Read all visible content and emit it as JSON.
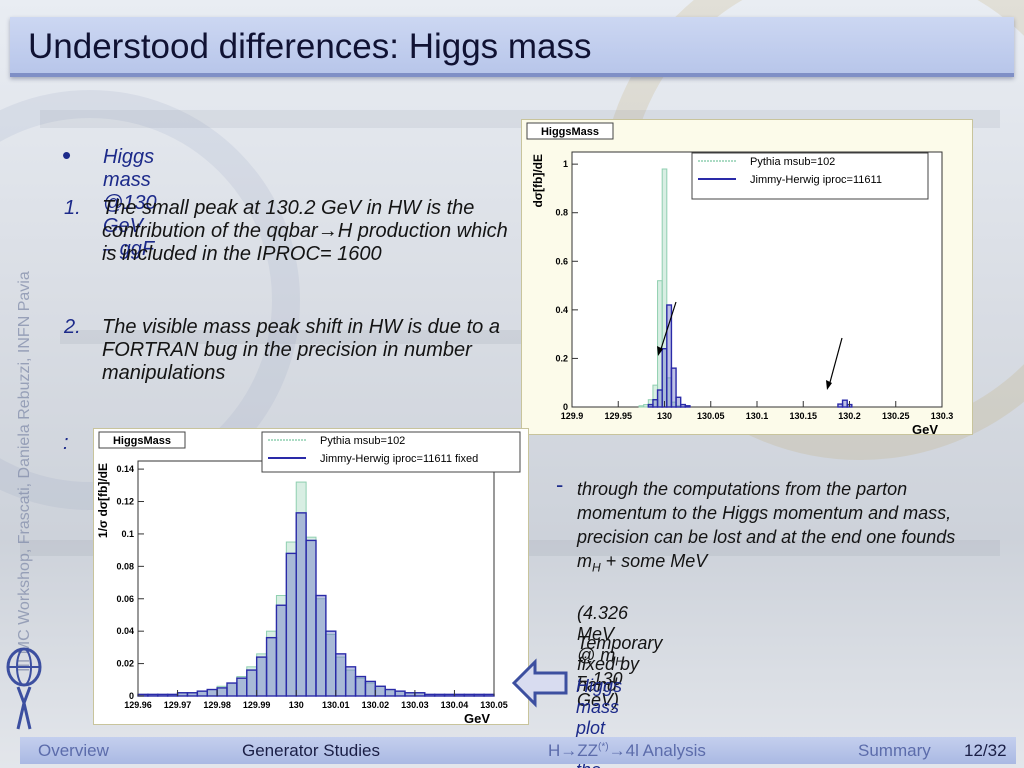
{
  "slide": {
    "title": "Understood differences: Higgs mass",
    "side_credit": "III MC Workshop, Frascati, Daniela Rebuzzi, INFN Pavia"
  },
  "body": {
    "bullet": "Higgs mass @130 GeV – ggF",
    "items": [
      {
        "num": "1.",
        "text": "The small peak at 130.2 GeV in HW is the contribution of the qqbar→H production which is included in the IPROC= 1600"
      },
      {
        "num": "2.",
        "text": "The visible mass peak shift in HW is due to a FORTRAN bug in the precision in number manipulations"
      }
    ],
    "colon": ":",
    "note": {
      "dash": "-",
      "text_before": "through the computations from the parton momentum to the Higgs momentum and mass, precision can be lost and at the end one founds m",
      "text_sub": "H",
      "text_after": " + some MeV",
      "line2_before": "(4.326 MeV @ m",
      "line2_sub": "H",
      "line2_after": " = 130 GeV)",
      "line3": "Temporary fixed by hand"
    },
    "fix_label": "Higgs mass plot after the fixes"
  },
  "chart_data": [
    {
      "type": "bar",
      "title": "HiggsMass",
      "xlabel": "GeV",
      "ylabel": "dσ[fb]/dE",
      "xlim": [
        129.9,
        130.3
      ],
      "ylim": [
        0,
        1.05
      ],
      "x_ticks": [
        "129.9",
        "129.95",
        "130",
        "130.05",
        "130.1",
        "130.15",
        "130.2",
        "130.25",
        "130.3"
      ],
      "y_ticks": [
        "0",
        "0.2",
        "0.4",
        "0.6",
        "0.8",
        "1"
      ],
      "legend_position": "top-right",
      "series": [
        {
          "name": "Pythia msub=102",
          "color": "#8fcfb0",
          "points": [
            {
              "x": 129.975,
              "y": 0.005
            },
            {
              "x": 129.98,
              "y": 0.01
            },
            {
              "x": 129.985,
              "y": 0.03
            },
            {
              "x": 129.99,
              "y": 0.09
            },
            {
              "x": 129.995,
              "y": 0.52
            },
            {
              "x": 130.0,
              "y": 0.98
            },
            {
              "x": 130.005,
              "y": 0.12
            },
            {
              "x": 130.01,
              "y": 0.02
            },
            {
              "x": 130.015,
              "y": 0.005
            }
          ]
        },
        {
          "name": "Jimmy-Herwig iproc=11611",
          "color": "#2a2aa8",
          "points": [
            {
              "x": 129.985,
              "y": 0.01
            },
            {
              "x": 129.99,
              "y": 0.03
            },
            {
              "x": 129.995,
              "y": 0.07
            },
            {
              "x": 130.0,
              "y": 0.24
            },
            {
              "x": 130.005,
              "y": 0.42
            },
            {
              "x": 130.01,
              "y": 0.16
            },
            {
              "x": 130.015,
              "y": 0.04
            },
            {
              "x": 130.02,
              "y": 0.01
            },
            {
              "x": 130.025,
              "y": 0.005
            },
            {
              "x": 130.19,
              "y": 0.012
            },
            {
              "x": 130.195,
              "y": 0.028
            },
            {
              "x": 130.2,
              "y": 0.01
            }
          ]
        }
      ]
    },
    {
      "type": "bar",
      "title": "HiggsMass",
      "xlabel": "GeV",
      "ylabel": "1/σ dσ[fb]/dE",
      "xlim": [
        129.96,
        130.05
      ],
      "ylim": [
        0,
        0.145
      ],
      "x_ticks": [
        "129.96",
        "129.97",
        "129.98",
        "129.99",
        "130",
        "130.01",
        "130.02",
        "130.03",
        "130.04",
        "130.05"
      ],
      "y_ticks": [
        "0",
        "0.02",
        "0.04",
        "0.06",
        "0.08",
        "0.1",
        "0.12",
        "0.14"
      ],
      "legend_position": "top-right",
      "series": [
        {
          "name": "Pythia msub=102",
          "color": "#8fcfb0",
          "values": [
            0.001,
            0.001,
            0.001,
            0.001,
            0.002,
            0.002,
            0.003,
            0.004,
            0.006,
            0.008,
            0.012,
            0.018,
            0.026,
            0.04,
            0.062,
            0.095,
            0.132,
            0.098,
            0.06,
            0.038,
            0.024,
            0.016,
            0.011,
            0.008,
            0.006,
            0.004,
            0.003,
            0.002,
            0.002,
            0.001,
            0.001,
            0.001,
            0.001,
            0.001,
            0.001,
            0.001
          ]
        },
        {
          "name": "Jimmy-Herwig iproc=11611 fixed",
          "color": "#2a2aa8",
          "values": [
            0.001,
            0.001,
            0.001,
            0.001,
            0.002,
            0.002,
            0.003,
            0.004,
            0.005,
            0.008,
            0.011,
            0.016,
            0.024,
            0.036,
            0.056,
            0.088,
            0.113,
            0.096,
            0.062,
            0.04,
            0.026,
            0.018,
            0.012,
            0.009,
            0.006,
            0.004,
            0.003,
            0.002,
            0.002,
            0.001,
            0.001,
            0.001,
            0.001,
            0.001,
            0.001,
            0.001
          ]
        }
      ]
    }
  ],
  "footer": {
    "items": [
      "Overview",
      "Generator Studies",
      "Summary"
    ],
    "analysis_before": "H→ZZ",
    "analysis_sup": "(*)",
    "analysis_after": "→4l Analysis",
    "page": "12/32"
  }
}
